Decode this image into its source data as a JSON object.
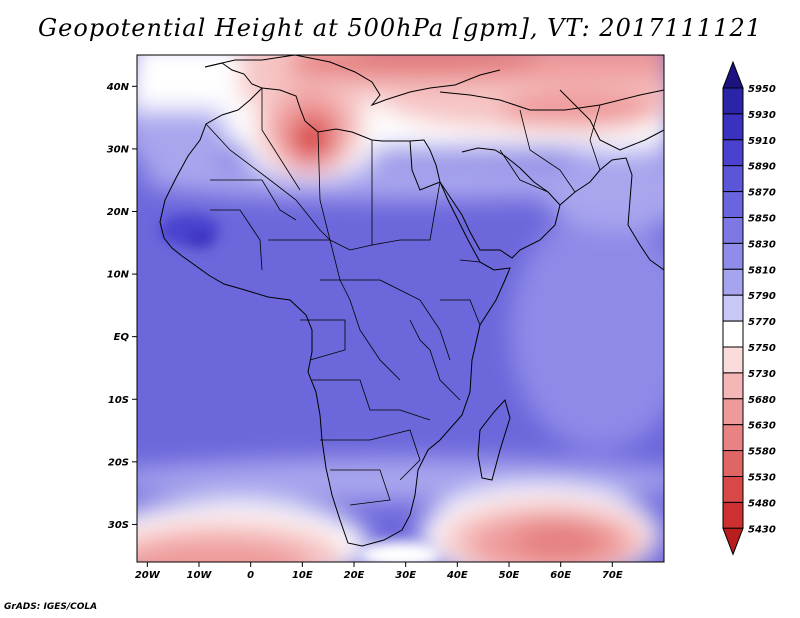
{
  "title": "Geopotential Height at 500hPa [gpm], VT: 2017111121",
  "credit": "GrADS: IGES/COLA",
  "map": {
    "variable": "Geopotential Height at 500hPa",
    "units": "gpm",
    "valid_time": "2017111121",
    "lon_range": [
      -22,
      80
    ],
    "lat_range": [
      -36,
      45
    ],
    "lat_ticks": [
      "40N",
      "30N",
      "20N",
      "10N",
      "EQ",
      "10S",
      "20S",
      "30S"
    ],
    "lon_ticks": [
      "20W",
      "10W",
      "0",
      "10E",
      "20E",
      "30E",
      "40E",
      "50E",
      "60E",
      "70E"
    ]
  },
  "colorbar": {
    "levels": [
      "5950",
      "5930",
      "5910",
      "5890",
      "5870",
      "5850",
      "5830",
      "5810",
      "5790",
      "5770",
      "5750",
      "5730",
      "5680",
      "5630",
      "5580",
      "5530",
      "5480",
      "5430"
    ],
    "colors": {
      "top_arrow": "#1d1380",
      "cells": [
        "#2c24a8",
        "#3a32bf",
        "#4a42cf",
        "#5b55d8",
        "#6a64de",
        "#7d78e4",
        "#908ce9",
        "#a7a4ef",
        "#c9c7f6",
        "#ffffff",
        "#fbdcdc",
        "#f5b6b6",
        "#ef9a9a",
        "#e98383",
        "#e06666",
        "#d94848",
        "#cc3030"
      ],
      "bottom_arrow": "#b81e1e"
    }
  },
  "palette": {
    "base_blue": "#6c67db",
    "deep_blue": "#4a42cf",
    "light_blue": "#a9a6ee",
    "pale_blue": "#d6d5f7",
    "white": "#ffffff",
    "pale_red": "#f6c4c4",
    "light_red": "#ef9a9a",
    "mid_red": "#e58080",
    "deep_red": "#d94848"
  }
}
